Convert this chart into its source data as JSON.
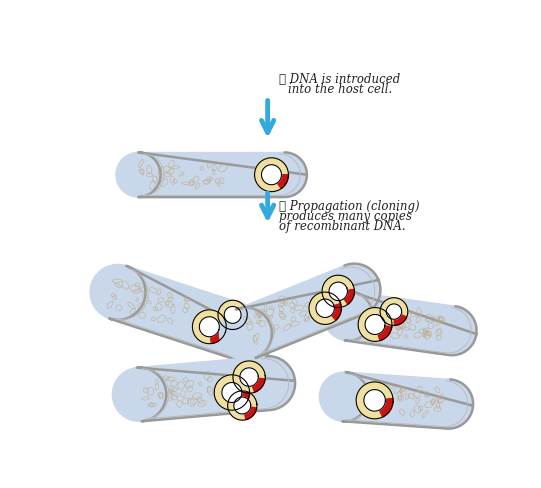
{
  "bg_color": "#ffffff",
  "cell_fill": "#c8d8ea",
  "cell_edge": "#999999",
  "cell_edge2": "#bbbbbb",
  "plasmid_outer": "#f0e0a0",
  "plasmid_hole": "#ffffff",
  "insert_color": "#cc1111",
  "dna_color": "#c0aa88",
  "arrow_color": "#33aadd",
  "text_color": "#222222",
  "step4_text_line1": "⑤ DNA is introduced",
  "step4_text_line2": "into the host cell.",
  "step5_text_line1": "⑥ Propagation (cloning)",
  "step5_text_line2": "produces many copies",
  "step5_text_line3": "of recombinant DNA.",
  "font_size": 8.5
}
